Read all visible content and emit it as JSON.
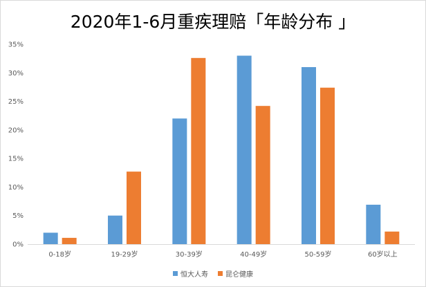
{
  "chart_data": {
    "type": "bar",
    "title": "2020年1-6月重疾理赔「年龄分布 」",
    "categories": [
      "0-18岁",
      "19-29岁",
      "30-39岁",
      "40-49岁",
      "50-59岁",
      "60岁以上"
    ],
    "series": [
      {
        "name": "恒大人寿",
        "color": "#5b9bd5",
        "values": [
          2.0,
          5.0,
          22.0,
          33.0,
          31.0,
          6.9
        ]
      },
      {
        "name": "昆仑健康",
        "color": "#ed7d31",
        "values": [
          1.1,
          12.7,
          32.6,
          24.2,
          27.4,
          2.2
        ]
      }
    ],
    "yticks": [
      "0%",
      "5%",
      "10%",
      "15%",
      "20%",
      "25%",
      "30%",
      "35%"
    ],
    "ylim": [
      0,
      35
    ],
    "xlabel": "",
    "ylabel": "",
    "grid": false,
    "legend": "bottom"
  }
}
